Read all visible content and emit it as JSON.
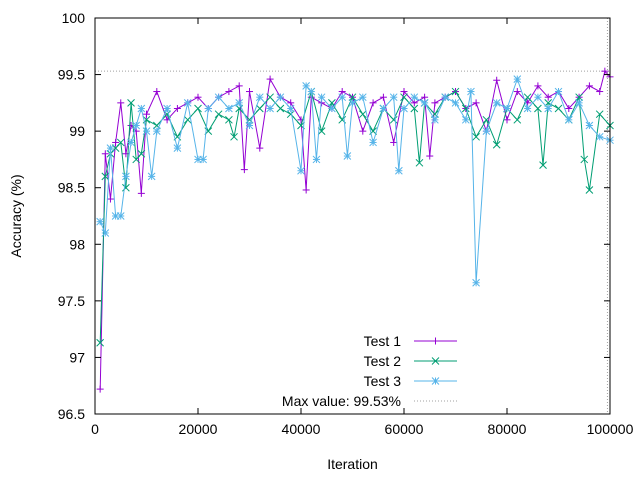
{
  "chart_data": {
    "type": "line",
    "title": "",
    "xlabel": "Iteration",
    "ylabel": "Accuracy (%)",
    "xlim": [
      0,
      100000
    ],
    "ylim": [
      96.5,
      100
    ],
    "x_ticks": [
      0,
      20000,
      40000,
      60000,
      80000,
      100000
    ],
    "y_ticks": [
      96.5,
      97,
      97.5,
      98,
      98.5,
      99,
      99.5,
      100
    ],
    "x_tick_labels": [
      "0",
      "20000",
      "40000",
      "60000",
      "80000",
      "100000"
    ],
    "y_tick_labels": [
      "96.5",
      "97",
      "97.5",
      "98",
      "98.5",
      "99",
      "99.5",
      "100"
    ],
    "legend_position": "bottom-center",
    "series": [
      {
        "name": "Test 1",
        "color": "#9400d3",
        "marker": "plus",
        "x": [
          1000,
          2000,
          3000,
          4000,
          5000,
          6000,
          7000,
          8000,
          9000,
          10000,
          12000,
          14000,
          16000,
          18000,
          20000,
          22000,
          24000,
          26000,
          28000,
          29000,
          30000,
          32000,
          34000,
          36000,
          38000,
          40000,
          41000,
          42000,
          44000,
          46000,
          48000,
          50000,
          52000,
          54000,
          56000,
          58000,
          60000,
          62000,
          64000,
          65000,
          66000,
          68000,
          70000,
          72000,
          74000,
          76000,
          78000,
          80000,
          82000,
          84000,
          86000,
          88000,
          90000,
          92000,
          94000,
          96000,
          98000,
          99000,
          100000
        ],
        "values": [
          96.72,
          98.8,
          98.4,
          98.9,
          99.25,
          98.8,
          99.05,
          99.0,
          98.45,
          99.15,
          99.35,
          99.1,
          99.2,
          99.25,
          99.3,
          99.2,
          99.3,
          99.35,
          99.4,
          98.66,
          99.35,
          98.85,
          99.46,
          99.3,
          99.25,
          99.1,
          98.48,
          99.3,
          99.25,
          99.2,
          99.35,
          99.3,
          99.0,
          99.25,
          99.3,
          98.9,
          99.35,
          99.25,
          99.3,
          98.78,
          99.25,
          99.3,
          99.35,
          99.2,
          99.25,
          99.0,
          99.45,
          99.1,
          99.35,
          99.25,
          99.4,
          99.3,
          99.35,
          99.2,
          99.3,
          99.4,
          99.35,
          99.53,
          99.48
        ]
      },
      {
        "name": "Test 2",
        "color": "#009e73",
        "marker": "cross",
        "x": [
          1000,
          2000,
          3000,
          4000,
          5000,
          6000,
          7000,
          8000,
          9000,
          10000,
          12000,
          14000,
          16000,
          18000,
          20000,
          22000,
          24000,
          26000,
          27000,
          28000,
          30000,
          32000,
          34000,
          36000,
          38000,
          40000,
          42000,
          44000,
          46000,
          48000,
          50000,
          52000,
          54000,
          56000,
          58000,
          60000,
          62000,
          63000,
          64000,
          66000,
          68000,
          70000,
          72000,
          74000,
          76000,
          78000,
          80000,
          82000,
          84000,
          86000,
          87000,
          88000,
          90000,
          92000,
          94000,
          95000,
          96000,
          98000,
          100000
        ],
        "values": [
          97.13,
          98.6,
          98.8,
          98.85,
          98.9,
          98.5,
          99.25,
          98.75,
          98.8,
          99.1,
          99.05,
          99.15,
          98.95,
          99.1,
          99.2,
          99.0,
          99.15,
          99.1,
          98.95,
          99.2,
          99.1,
          99.2,
          99.3,
          99.2,
          99.15,
          99.05,
          99.35,
          99.0,
          99.25,
          99.1,
          99.3,
          99.15,
          99.0,
          99.2,
          99.1,
          99.3,
          99.2,
          98.72,
          99.25,
          99.15,
          99.3,
          99.35,
          99.2,
          98.95,
          99.1,
          98.88,
          99.2,
          99.1,
          99.3,
          99.2,
          98.7,
          99.25,
          99.2,
          99.1,
          99.3,
          98.75,
          98.48,
          99.15,
          99.05
        ]
      },
      {
        "name": "Test 3",
        "color": "#56b4e9",
        "marker": "star",
        "x": [
          1000,
          2000,
          3000,
          4000,
          5000,
          6000,
          7000,
          8000,
          9000,
          10000,
          11000,
          12000,
          14000,
          16000,
          18000,
          20000,
          21000,
          22000,
          24000,
          26000,
          28000,
          30000,
          32000,
          34000,
          36000,
          38000,
          40000,
          41000,
          42000,
          43000,
          44000,
          46000,
          48000,
          49000,
          50000,
          52000,
          54000,
          56000,
          58000,
          59000,
          60000,
          62000,
          64000,
          66000,
          68000,
          70000,
          72000,
          73000,
          74000,
          76000,
          78000,
          80000,
          82000,
          84000,
          86000,
          88000,
          90000,
          92000,
          94000,
          96000,
          98000,
          100000
        ],
        "values": [
          98.2,
          98.1,
          98.85,
          98.25,
          98.25,
          98.6,
          98.9,
          99.05,
          99.2,
          99.0,
          98.6,
          99.0,
          99.2,
          98.85,
          99.25,
          98.75,
          98.75,
          99.2,
          99.3,
          99.2,
          99.25,
          99.05,
          99.3,
          99.2,
          99.3,
          99.2,
          98.65,
          99.4,
          99.35,
          98.75,
          99.3,
          99.2,
          99.3,
          98.78,
          99.25,
          99.3,
          98.9,
          99.2,
          99.3,
          98.65,
          99.2,
          99.3,
          99.25,
          99.1,
          99.3,
          99.25,
          99.1,
          99.35,
          97.66,
          99.0,
          99.25,
          99.2,
          99.46,
          99.2,
          99.3,
          99.2,
          99.35,
          99.1,
          99.25,
          99.05,
          98.95,
          98.92
        ]
      }
    ],
    "reference_line": {
      "label": "Max value: 99.53%",
      "value": 99.53,
      "x_value": 99500,
      "color": "#a0a0a0",
      "style": "dotted"
    }
  }
}
